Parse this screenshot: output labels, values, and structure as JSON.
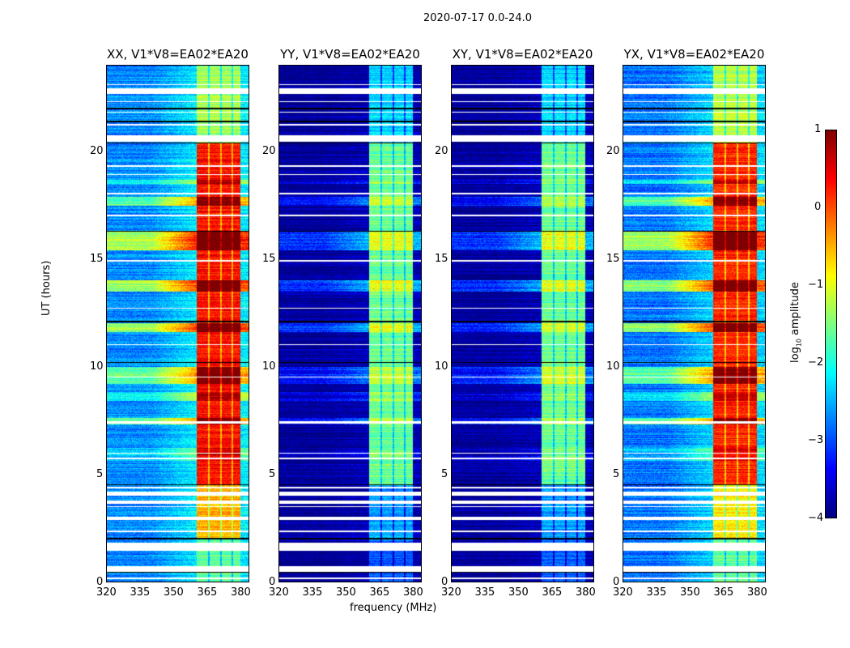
{
  "chart_data": {
    "type": "heatmap",
    "title": "2020-07-17 0.0-24.0",
    "xlabel": "frequency (MHz)",
    "ylabel": "UT (hours)",
    "xlim": [
      320,
      384
    ],
    "ylim": [
      0,
      24
    ],
    "xticks": [
      "320",
      "335",
      "350",
      "365",
      "380"
    ],
    "yticks": [
      "0",
      "5",
      "10",
      "15",
      "20"
    ],
    "colorbar": {
      "label_prefix": "log",
      "label_sub": "10",
      "label_suffix": " amplitude",
      "range": [
        -4,
        1
      ],
      "ticks": [
        "1",
        "0",
        "−1",
        "−2",
        "−3",
        "−4"
      ],
      "colormap": "jet"
    },
    "band_mhz": [
      360.5,
      380.3
    ],
    "band_gaps_mhz": [
      366.2,
      371.6,
      376.6
    ],
    "panels": [
      {
        "title": "XX, V1*V8=EA02*EA20",
        "background": -2.7,
        "event_gain": 1.0,
        "band_levels": [
          [
            0,
            2,
            -1.6
          ],
          [
            2,
            4.5,
            -0.5
          ],
          [
            4.5,
            20.4,
            0.3
          ],
          [
            20.4,
            24,
            -1.3
          ]
        ]
      },
      {
        "title": "YY, V1*V8=EA02*EA20",
        "background": -3.9,
        "event_gain": 0.55,
        "band_levels": [
          [
            0,
            2,
            -2.9
          ],
          [
            2,
            4.5,
            -2.6
          ],
          [
            4.5,
            20.4,
            -1.6
          ],
          [
            20.4,
            24,
            -2.3
          ]
        ]
      },
      {
        "title": "XY, V1*V8=EA02*EA20",
        "background": -3.9,
        "event_gain": 0.55,
        "band_levels": [
          [
            0,
            2,
            -2.9
          ],
          [
            2,
            4.5,
            -2.6
          ],
          [
            4.5,
            20.4,
            -1.6
          ],
          [
            20.4,
            24,
            -2.3
          ]
        ]
      },
      {
        "title": "YX, V1*V8=EA02*EA20",
        "background": -2.8,
        "event_gain": 1.0,
        "band_levels": [
          [
            0,
            2,
            -1.6
          ],
          [
            2,
            4.5,
            -0.8
          ],
          [
            4.5,
            20.4,
            0.2
          ],
          [
            20.4,
            24,
            -1.2
          ]
        ]
      }
    ],
    "bright_intervals_hours": [
      [
        15.4,
        16.3,
        2.4
      ],
      [
        13.5,
        14.0,
        2.2
      ],
      [
        11.6,
        12.0,
        2.2
      ],
      [
        9.2,
        10.0,
        1.8
      ],
      [
        7.3,
        7.6,
        1.8
      ],
      [
        17.5,
        17.9,
        1.8
      ],
      [
        5.6,
        6.2,
        0.6
      ],
      [
        18.5,
        18.7,
        0.8
      ],
      [
        8.4,
        8.8,
        1.0
      ]
    ],
    "flagged_intervals_hours": [
      [
        0.12,
        0.2
      ],
      [
        0.45,
        0.72
      ],
      [
        1.42,
        1.8
      ],
      [
        2.3,
        2.36
      ],
      [
        2.85,
        3.0
      ],
      [
        3.45,
        3.52
      ],
      [
        3.6,
        3.75
      ],
      [
        3.98,
        4.2
      ],
      [
        4.35,
        4.42
      ],
      [
        5.7,
        5.75
      ],
      [
        5.95,
        6.0
      ],
      [
        7.35,
        7.45
      ],
      [
        9.5,
        9.55
      ],
      [
        11.0,
        11.05
      ],
      [
        12.7,
        12.75
      ],
      [
        14.9,
        14.95
      ],
      [
        17.0,
        17.05
      ],
      [
        18.0,
        18.1
      ],
      [
        18.9,
        18.95
      ],
      [
        19.3,
        19.35
      ],
      [
        20.45,
        20.75
      ],
      [
        21.2,
        21.3
      ],
      [
        21.8,
        21.85
      ],
      [
        22.3,
        22.35
      ],
      [
        22.7,
        22.95
      ],
      [
        23.1,
        23.15
      ]
    ],
    "scan_boundaries_hours": [
      0.45,
      2.0,
      4.5,
      10.2,
      12.1,
      16.3,
      20.4,
      21.4,
      22.0,
      22.9
    ]
  }
}
